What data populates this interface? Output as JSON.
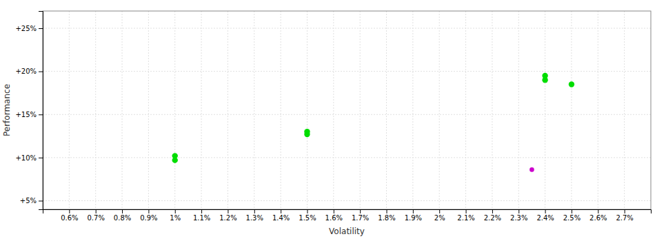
{
  "chart_data": {
    "type": "scatter",
    "xlabel": "Volatility",
    "ylabel": "Performance",
    "xlim": [
      0.005,
      0.028
    ],
    "ylim": [
      0.04,
      0.27
    ],
    "xticks": [
      {
        "value": 0.006,
        "label": "0.6%"
      },
      {
        "value": 0.007,
        "label": "0.7%"
      },
      {
        "value": 0.008,
        "label": "0.8%"
      },
      {
        "value": 0.009,
        "label": "0.9%"
      },
      {
        "value": 0.01,
        "label": "1%"
      },
      {
        "value": 0.011,
        "label": "1.1%"
      },
      {
        "value": 0.012,
        "label": "1.2%"
      },
      {
        "value": 0.013,
        "label": "1.3%"
      },
      {
        "value": 0.014,
        "label": "1.4%"
      },
      {
        "value": 0.015,
        "label": "1.5%"
      },
      {
        "value": 0.016,
        "label": "1.6%"
      },
      {
        "value": 0.017,
        "label": "1.7%"
      },
      {
        "value": 0.018,
        "label": "1.8%"
      },
      {
        "value": 0.019,
        "label": "1.9%"
      },
      {
        "value": 0.02,
        "label": "2%"
      },
      {
        "value": 0.021,
        "label": "2.1%"
      },
      {
        "value": 0.022,
        "label": "2.2%"
      },
      {
        "value": 0.023,
        "label": "2.3%"
      },
      {
        "value": 0.024,
        "label": "2.4%"
      },
      {
        "value": 0.025,
        "label": "2.5%"
      },
      {
        "value": 0.026,
        "label": "2.6%"
      },
      {
        "value": 0.027,
        "label": "2.7%"
      }
    ],
    "yticks": [
      {
        "value": 0.05,
        "label": "+5%"
      },
      {
        "value": 0.1,
        "label": "+10%"
      },
      {
        "value": 0.15,
        "label": "+15%"
      },
      {
        "value": 0.2,
        "label": "+20%"
      },
      {
        "value": 0.25,
        "label": "+25%"
      }
    ],
    "grid": true,
    "series": [
      {
        "color": "#00dd00",
        "x": [
          0.01,
          0.01,
          0.015,
          0.015,
          0.024,
          0.024,
          0.025
        ],
        "values": [
          0.102,
          0.097,
          0.13,
          0.127,
          0.195,
          0.19,
          0.185
        ]
      },
      {
        "color": "#cc00cc",
        "x": [
          0.0235
        ],
        "values": [
          0.086
        ]
      }
    ]
  }
}
